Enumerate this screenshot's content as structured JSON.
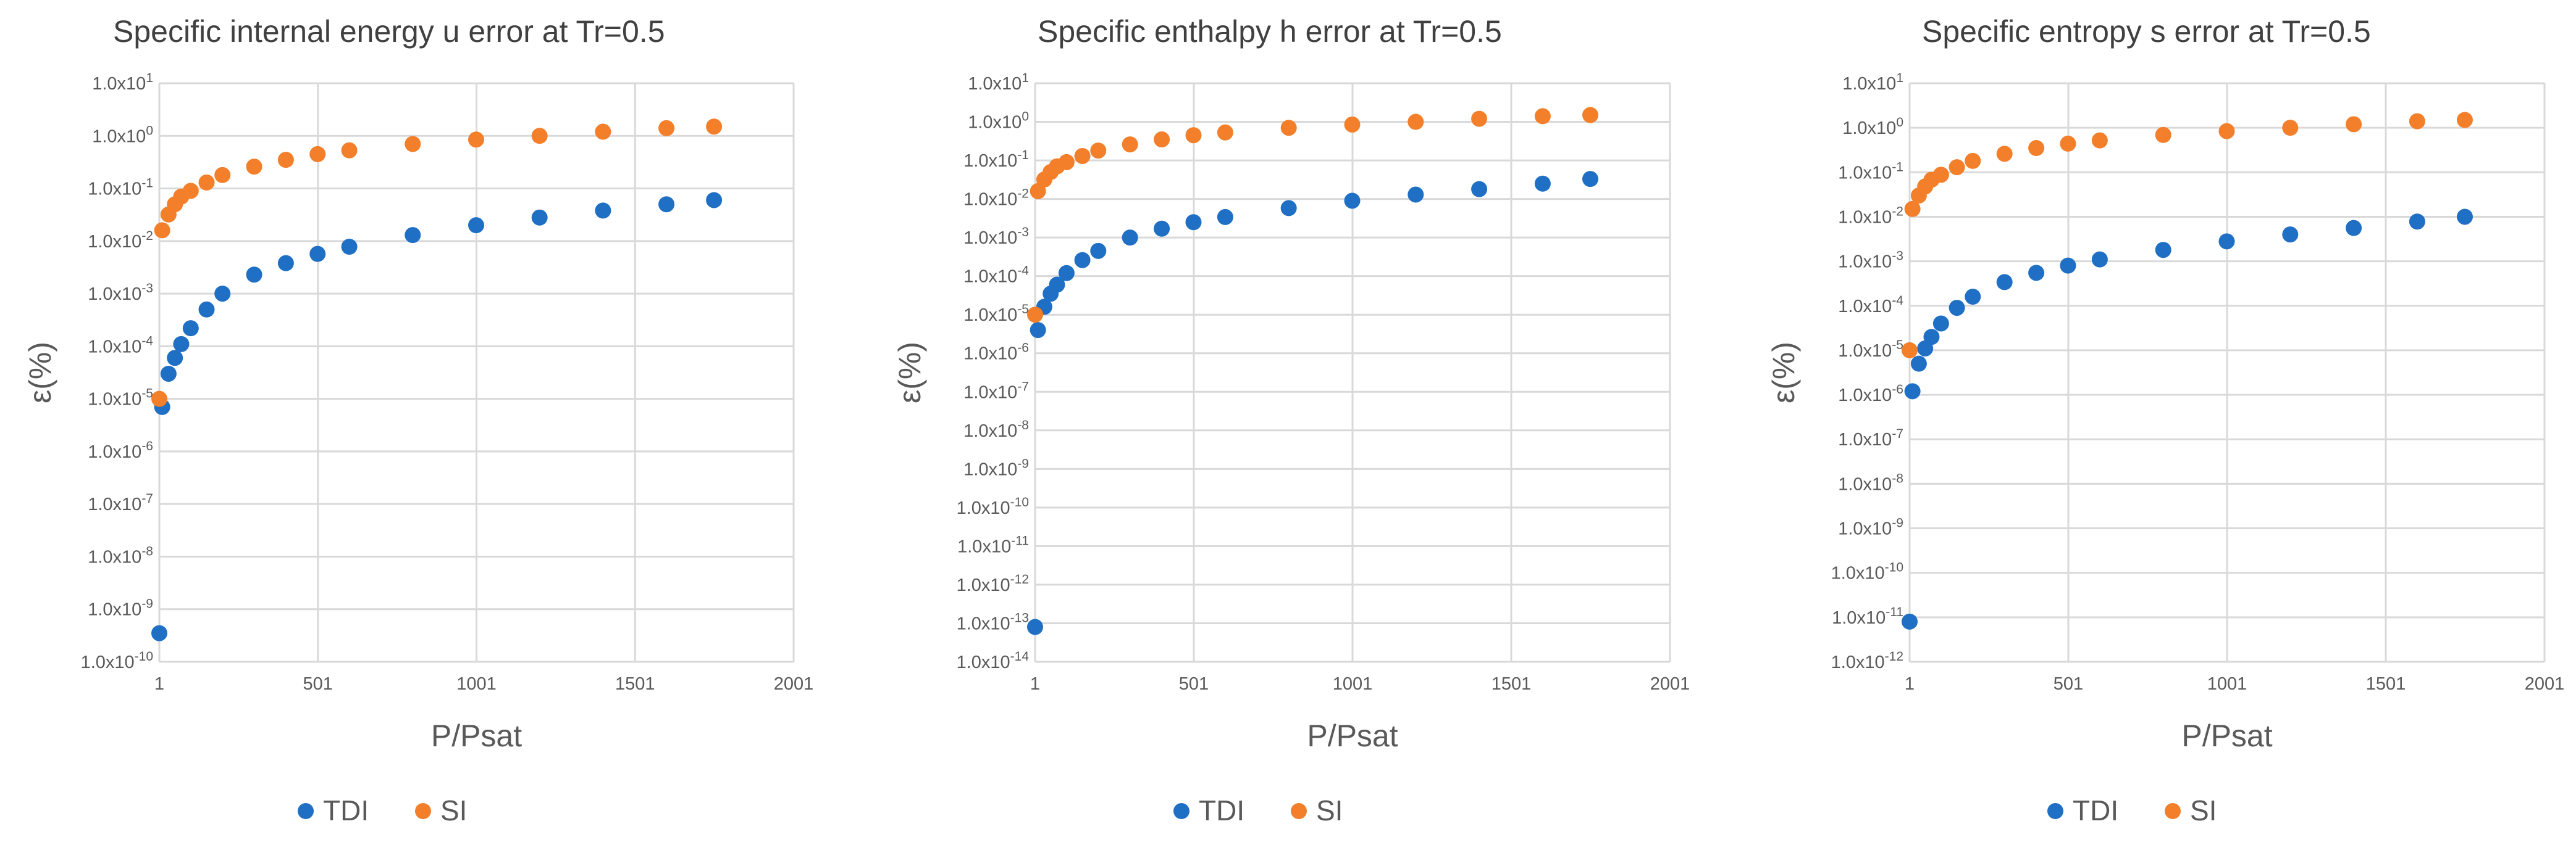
{
  "colors": {
    "TDI": "#1f6fc5",
    "SI": "#f47f2a",
    "grid": "#d9d9d9",
    "text": "#595959"
  },
  "chart_data": [
    {
      "type": "scatter",
      "title": "Specific internal energy u error at Tr=0.5",
      "xlabel": "P/Psat",
      "ylabel": "ε(%)",
      "yscale": "log",
      "xlim": [
        1,
        2001
      ],
      "xticks": [
        "1",
        "501",
        "1001",
        "1501",
        "2001"
      ],
      "ylim_exp": [
        -10,
        1
      ],
      "yticks": [
        {
          "base": "1.0x10",
          "exp": "1"
        },
        {
          "base": "1.0x10",
          "exp": "0"
        },
        {
          "base": "1.0x10",
          "exp": "-1"
        },
        {
          "base": "1.0x10",
          "exp": "-2"
        },
        {
          "base": "1.0x10",
          "exp": "-3"
        },
        {
          "base": "1.0x10",
          "exp": "-4"
        },
        {
          "base": "1.0x10",
          "exp": "-5"
        },
        {
          "base": "1.0x10",
          "exp": "-6"
        },
        {
          "base": "1.0x10",
          "exp": "-7"
        },
        {
          "base": "1.0x10",
          "exp": "-8"
        },
        {
          "base": "1.0x10",
          "exp": "-9"
        },
        {
          "base": "1.0x10",
          "exp": "-10"
        }
      ],
      "legend": [
        "TDI",
        "SI"
      ],
      "series": [
        {
          "name": "TDI",
          "x": [
            1,
            10,
            30,
            50,
            70,
            100,
            150,
            200,
            300,
            400,
            500,
            600,
            800,
            1000,
            1200,
            1400,
            1600,
            1750
          ],
          "y": [
            3.5e-10,
            7e-06,
            3e-05,
            6e-05,
            0.00011,
            0.00022,
            0.0005,
            0.001,
            0.0023,
            0.0038,
            0.0057,
            0.0078,
            0.013,
            0.02,
            0.028,
            0.038,
            0.05,
            0.06
          ]
        },
        {
          "name": "SI",
          "x": [
            1,
            10,
            30,
            50,
            70,
            100,
            150,
            200,
            300,
            400,
            500,
            600,
            800,
            1000,
            1200,
            1400,
            1600,
            1750
          ],
          "y": [
            1e-05,
            0.016,
            0.032,
            0.05,
            0.07,
            0.09,
            0.13,
            0.18,
            0.26,
            0.35,
            0.45,
            0.53,
            0.7,
            0.85,
            1.0,
            1.2,
            1.4,
            1.5
          ]
        }
      ]
    },
    {
      "type": "scatter",
      "title": "Specific enthalpy h error at Tr=0.5",
      "xlabel": "P/Psat",
      "ylabel": "ε(%)",
      "yscale": "log",
      "xlim": [
        1,
        2001
      ],
      "xticks": [
        "1",
        "501",
        "1001",
        "1501",
        "2001"
      ],
      "ylim_exp": [
        -14,
        1
      ],
      "yticks": [
        {
          "base": "1.0x10",
          "exp": "1"
        },
        {
          "base": "1.0x10",
          "exp": "0"
        },
        {
          "base": "1.0x10",
          "exp": "-1"
        },
        {
          "base": "1.0x10",
          "exp": "-2"
        },
        {
          "base": "1.0x10",
          "exp": "-3"
        },
        {
          "base": "1.0x10",
          "exp": "-4"
        },
        {
          "base": "1.0x10",
          "exp": "-5"
        },
        {
          "base": "1.0x10",
          "exp": "-6"
        },
        {
          "base": "1.0x10",
          "exp": "-7"
        },
        {
          "base": "1.0x10",
          "exp": "-8"
        },
        {
          "base": "1.0x10",
          "exp": "-9"
        },
        {
          "base": "1.0x10",
          "exp": "-10"
        },
        {
          "base": "1.0x10",
          "exp": "-11"
        },
        {
          "base": "1.0x10",
          "exp": "-12"
        },
        {
          "base": "1.0x10",
          "exp": "-13"
        },
        {
          "base": "1.0x10",
          "exp": "-14"
        }
      ],
      "legend": [
        "TDI",
        "SI"
      ],
      "series": [
        {
          "name": "TDI",
          "x": [
            1,
            10,
            30,
            50,
            70,
            100,
            150,
            200,
            300,
            400,
            500,
            600,
            800,
            1000,
            1200,
            1400,
            1600,
            1750
          ],
          "y": [
            8e-14,
            4e-06,
            1.6e-05,
            3.5e-05,
            6e-05,
            0.00012,
            0.00026,
            0.00045,
            0.001,
            0.0017,
            0.0025,
            0.0034,
            0.0058,
            0.009,
            0.013,
            0.018,
            0.025,
            0.033
          ]
        },
        {
          "name": "SI",
          "x": [
            1,
            10,
            30,
            50,
            70,
            100,
            150,
            200,
            300,
            400,
            500,
            600,
            800,
            1000,
            1200,
            1400,
            1600,
            1750
          ],
          "y": [
            1e-05,
            0.016,
            0.032,
            0.05,
            0.07,
            0.09,
            0.13,
            0.18,
            0.26,
            0.35,
            0.45,
            0.53,
            0.7,
            0.85,
            1.0,
            1.2,
            1.4,
            1.5
          ]
        }
      ]
    },
    {
      "type": "scatter",
      "title": "Specific entropy s error at Tr=0.5",
      "xlabel": "P/Psat",
      "ylabel": "ε(%)",
      "yscale": "log",
      "xlim": [
        1,
        2001
      ],
      "xticks": [
        "1",
        "501",
        "1001",
        "1501",
        "2001"
      ],
      "ylim_exp": [
        -12,
        1
      ],
      "yticks": [
        {
          "base": "1.0x10",
          "exp": "1"
        },
        {
          "base": "1.0x10",
          "exp": "0"
        },
        {
          "base": "1.0x10",
          "exp": "-1"
        },
        {
          "base": "1.0x10",
          "exp": "-2"
        },
        {
          "base": "1.0x10",
          "exp": "-3"
        },
        {
          "base": "1.0x10",
          "exp": "-4"
        },
        {
          "base": "1.0x10",
          "exp": "-5"
        },
        {
          "base": "1.0x10",
          "exp": "-6"
        },
        {
          "base": "1.0x10",
          "exp": "-7"
        },
        {
          "base": "1.0x10",
          "exp": "-8"
        },
        {
          "base": "1.0x10",
          "exp": "-9"
        },
        {
          "base": "1.0x10",
          "exp": "-10"
        },
        {
          "base": "1.0x10",
          "exp": "-11"
        },
        {
          "base": "1.0x10",
          "exp": "-12"
        }
      ],
      "legend": [
        "TDI",
        "SI"
      ],
      "series": [
        {
          "name": "TDI",
          "x": [
            1,
            10,
            30,
            50,
            70,
            100,
            150,
            200,
            300,
            400,
            500,
            600,
            800,
            1000,
            1200,
            1400,
            1600,
            1750
          ],
          "y": [
            8e-12,
            1.2e-06,
            5e-06,
            1.1e-05,
            2e-05,
            4e-05,
            9e-05,
            0.00016,
            0.00034,
            0.00055,
            0.0008,
            0.0011,
            0.0018,
            0.0028,
            0.004,
            0.0056,
            0.0078,
            0.01
          ]
        },
        {
          "name": "SI",
          "x": [
            1,
            10,
            30,
            50,
            70,
            100,
            150,
            200,
            300,
            400,
            500,
            600,
            800,
            1000,
            1200,
            1400,
            1600,
            1750
          ],
          "y": [
            1e-05,
            0.015,
            0.03,
            0.048,
            0.068,
            0.088,
            0.13,
            0.18,
            0.26,
            0.35,
            0.44,
            0.52,
            0.69,
            0.84,
            1.0,
            1.2,
            1.4,
            1.5
          ]
        }
      ]
    }
  ]
}
